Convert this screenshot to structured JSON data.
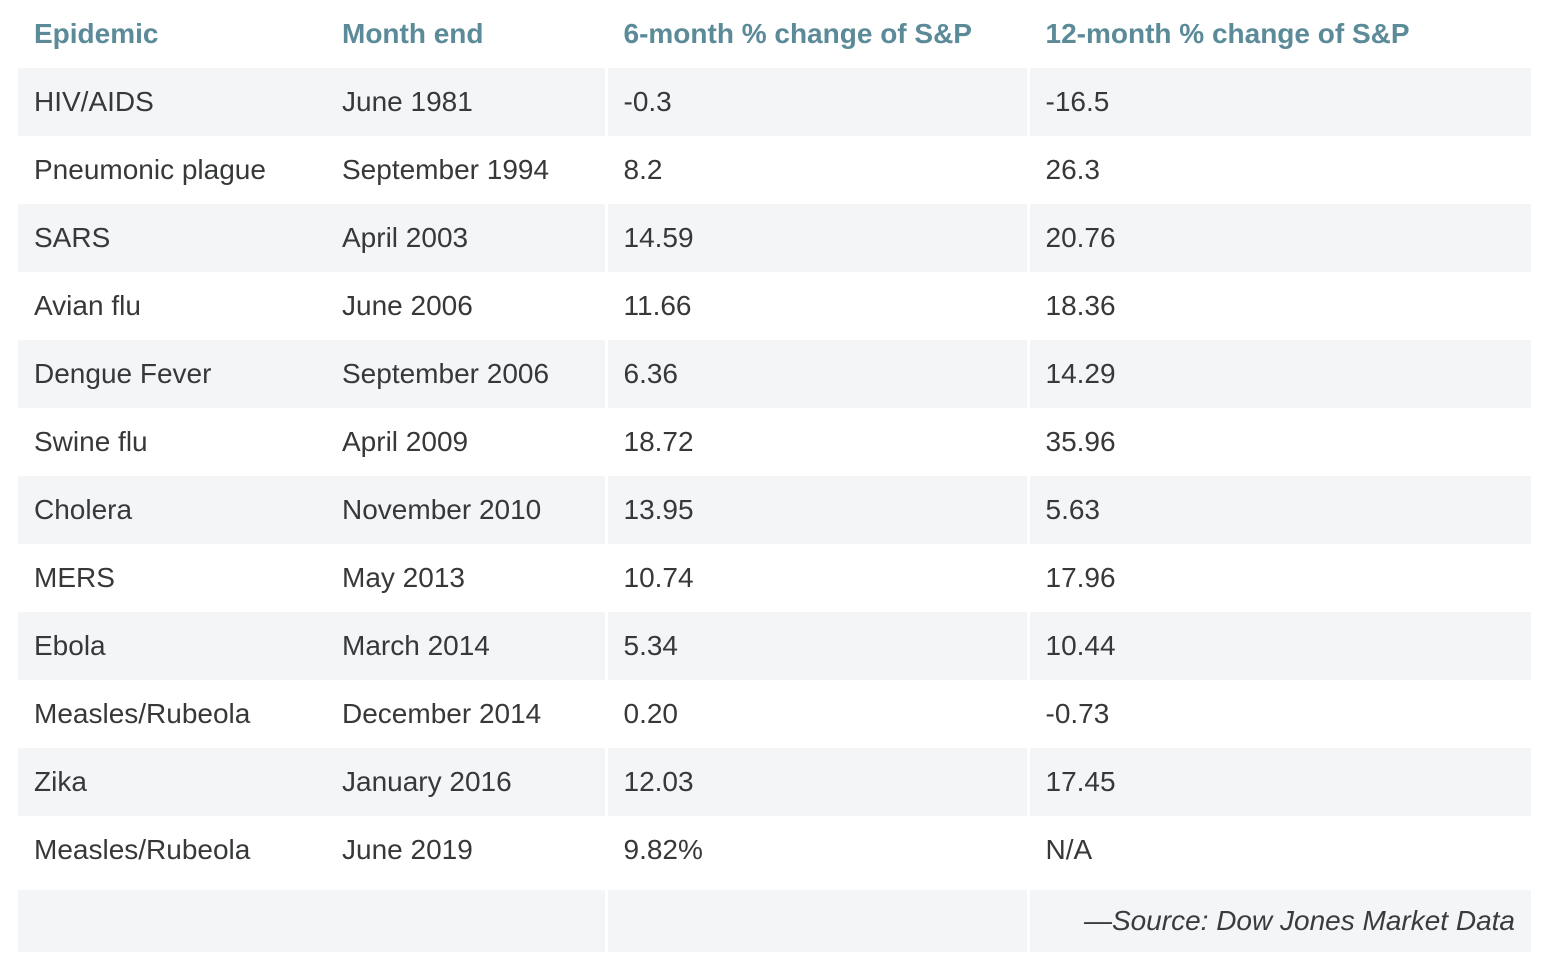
{
  "chart_data": {
    "type": "table",
    "title": "",
    "columns": [
      "Epidemic",
      "Month end",
      "6-month % change of S&P",
      "12-month % change of S&P"
    ],
    "rows": [
      {
        "epidemic": "HIV/AIDS",
        "month_end": "June 1981",
        "six_month": "-0.3",
        "twelve_month": "-16.5"
      },
      {
        "epidemic": "Pneumonic plague",
        "month_end": "September 1994",
        "six_month": "8.2",
        "twelve_month": "26.3"
      },
      {
        "epidemic": "SARS",
        "month_end": "April 2003",
        "six_month": "14.59",
        "twelve_month": "20.76"
      },
      {
        "epidemic": "Avian flu",
        "month_end": "June 2006",
        "six_month": "11.66",
        "twelve_month": "18.36"
      },
      {
        "epidemic": "Dengue Fever",
        "month_end": "September 2006",
        "six_month": "6.36",
        "twelve_month": "14.29"
      },
      {
        "epidemic": "Swine flu",
        "month_end": "April 2009",
        "six_month": "18.72",
        "twelve_month": "35.96"
      },
      {
        "epidemic": "Cholera",
        "month_end": "November 2010",
        "six_month": "13.95",
        "twelve_month": "5.63"
      },
      {
        "epidemic": "MERS",
        "month_end": "May 2013",
        "six_month": "10.74",
        "twelve_month": "17.96"
      },
      {
        "epidemic": "Ebola",
        "month_end": "March 2014",
        "six_month": "5.34",
        "twelve_month": "10.44"
      },
      {
        "epidemic": "Measles/Rubeola",
        "month_end": "December 2014",
        "six_month": "0.20",
        "twelve_month": "-0.73"
      },
      {
        "epidemic": "Zika",
        "month_end": "January 2016",
        "six_month": "12.03",
        "twelve_month": "17.45"
      },
      {
        "epidemic": "Measles/Rubeola",
        "month_end": "June 2019",
        "six_month": "9.82%",
        "twelve_month": "N/A"
      }
    ],
    "source": "—Source: Dow Jones Market Data",
    "layout_hints": {
      "striped_rows": "odd data rows shaded",
      "legend": "none",
      "grid": "off"
    }
  },
  "colors": {
    "header_text": "#5b8a98",
    "body_text": "#36383a",
    "stripe_background": "#f4f5f6",
    "row_background": "#ffffff"
  }
}
